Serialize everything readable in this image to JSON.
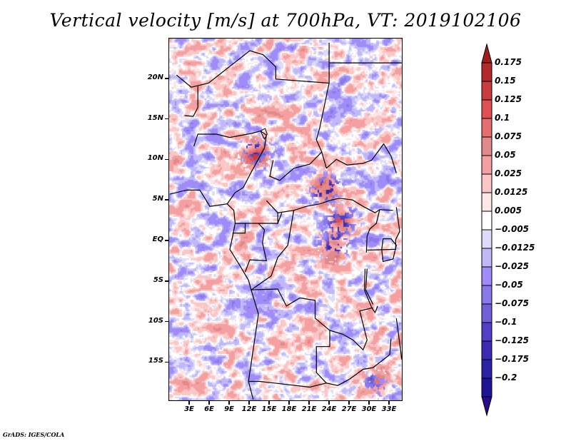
{
  "title": "Vertical velocity [m/s] at 700hPa, VT: 2019102106",
  "credit": "GrADS: IGES/COLA",
  "map": {
    "variable": "Vertical velocity",
    "units": "m/s",
    "level": "700hPa",
    "valid_time": "2019102106",
    "lon_range": [
      0,
      35
    ],
    "lat_range": [
      -19.5,
      24.5
    ],
    "y_ticks": [
      {
        "label": "20N",
        "lat": 20
      },
      {
        "label": "15N",
        "lat": 15
      },
      {
        "label": "10N",
        "lat": 10
      },
      {
        "label": "5N",
        "lat": 5
      },
      {
        "label": "EQ",
        "lat": 0
      },
      {
        "label": "5S",
        "lat": -5
      },
      {
        "label": "10S",
        "lat": -10
      },
      {
        "label": "15S",
        "lat": -15
      }
    ],
    "x_ticks": [
      {
        "label": "3E",
        "lon": 3
      },
      {
        "label": "6E",
        "lon": 6
      },
      {
        "label": "9E",
        "lon": 9
      },
      {
        "label": "12E",
        "lon": 12
      },
      {
        "label": "15E",
        "lon": 15
      },
      {
        "label": "18E",
        "lon": 18
      },
      {
        "label": "21E",
        "lon": 21
      },
      {
        "label": "24E",
        "lon": 24
      },
      {
        "label": "27E",
        "lon": 27
      },
      {
        "label": "30E",
        "lon": 30
      },
      {
        "label": "33E",
        "lon": 33
      }
    ]
  },
  "colorbar": {
    "levels": [
      {
        "label": "0.175",
        "value": 0.175
      },
      {
        "label": "0.15",
        "value": 0.15
      },
      {
        "label": "0.125",
        "value": 0.125
      },
      {
        "label": "0.1",
        "value": 0.1
      },
      {
        "label": "0.075",
        "value": 0.075
      },
      {
        "label": "0.05",
        "value": 0.05
      },
      {
        "label": "0.025",
        "value": 0.025
      },
      {
        "label": "0.0125",
        "value": 0.0125
      },
      {
        "label": "0.005",
        "value": 0.005
      },
      {
        "label": "−0.005",
        "value": -0.005
      },
      {
        "label": "−0.0125",
        "value": -0.0125
      },
      {
        "label": "−0.025",
        "value": -0.025
      },
      {
        "label": "−0.05",
        "value": -0.05
      },
      {
        "label": "−0.075",
        "value": -0.075
      },
      {
        "label": "−0.1",
        "value": -0.1
      },
      {
        "label": "−0.125",
        "value": -0.125
      },
      {
        "label": "−0.175",
        "value": -0.175
      },
      {
        "label": "−0.2",
        "value": -0.2
      }
    ],
    "colors_top_to_bottom": [
      "#a01e22",
      "#b42a2c",
      "#c83c3e",
      "#e05050",
      "#e46e70",
      "#e08a8c",
      "#f4a0a0",
      "#fac6c6",
      "#fde6e6",
      "#ffffff",
      "#dcdcfa",
      "#c0b8f8",
      "#a08cf8",
      "#8878e8",
      "#7060d8",
      "#5040c8",
      "#3c2ab4",
      "#2c20a4",
      "#1e1496",
      "#280c8c"
    ]
  }
}
